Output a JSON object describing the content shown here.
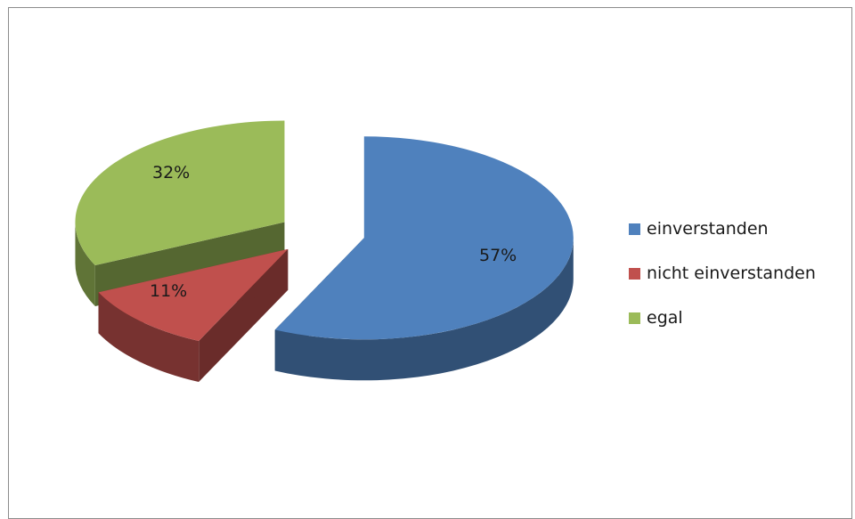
{
  "chart_data": {
    "type": "pie",
    "is_3d": true,
    "exploded": true,
    "title": "",
    "legend_position": "right",
    "slices": [
      {
        "label": "einverstanden",
        "value": 57,
        "display": "57%",
        "color": "#4f81bd"
      },
      {
        "label": "nicht einverstanden",
        "value": 11,
        "display": "11%",
        "color": "#c0504d"
      },
      {
        "label": "egal",
        "value": 32,
        "display": "32%",
        "color": "#9bbb59"
      }
    ]
  }
}
